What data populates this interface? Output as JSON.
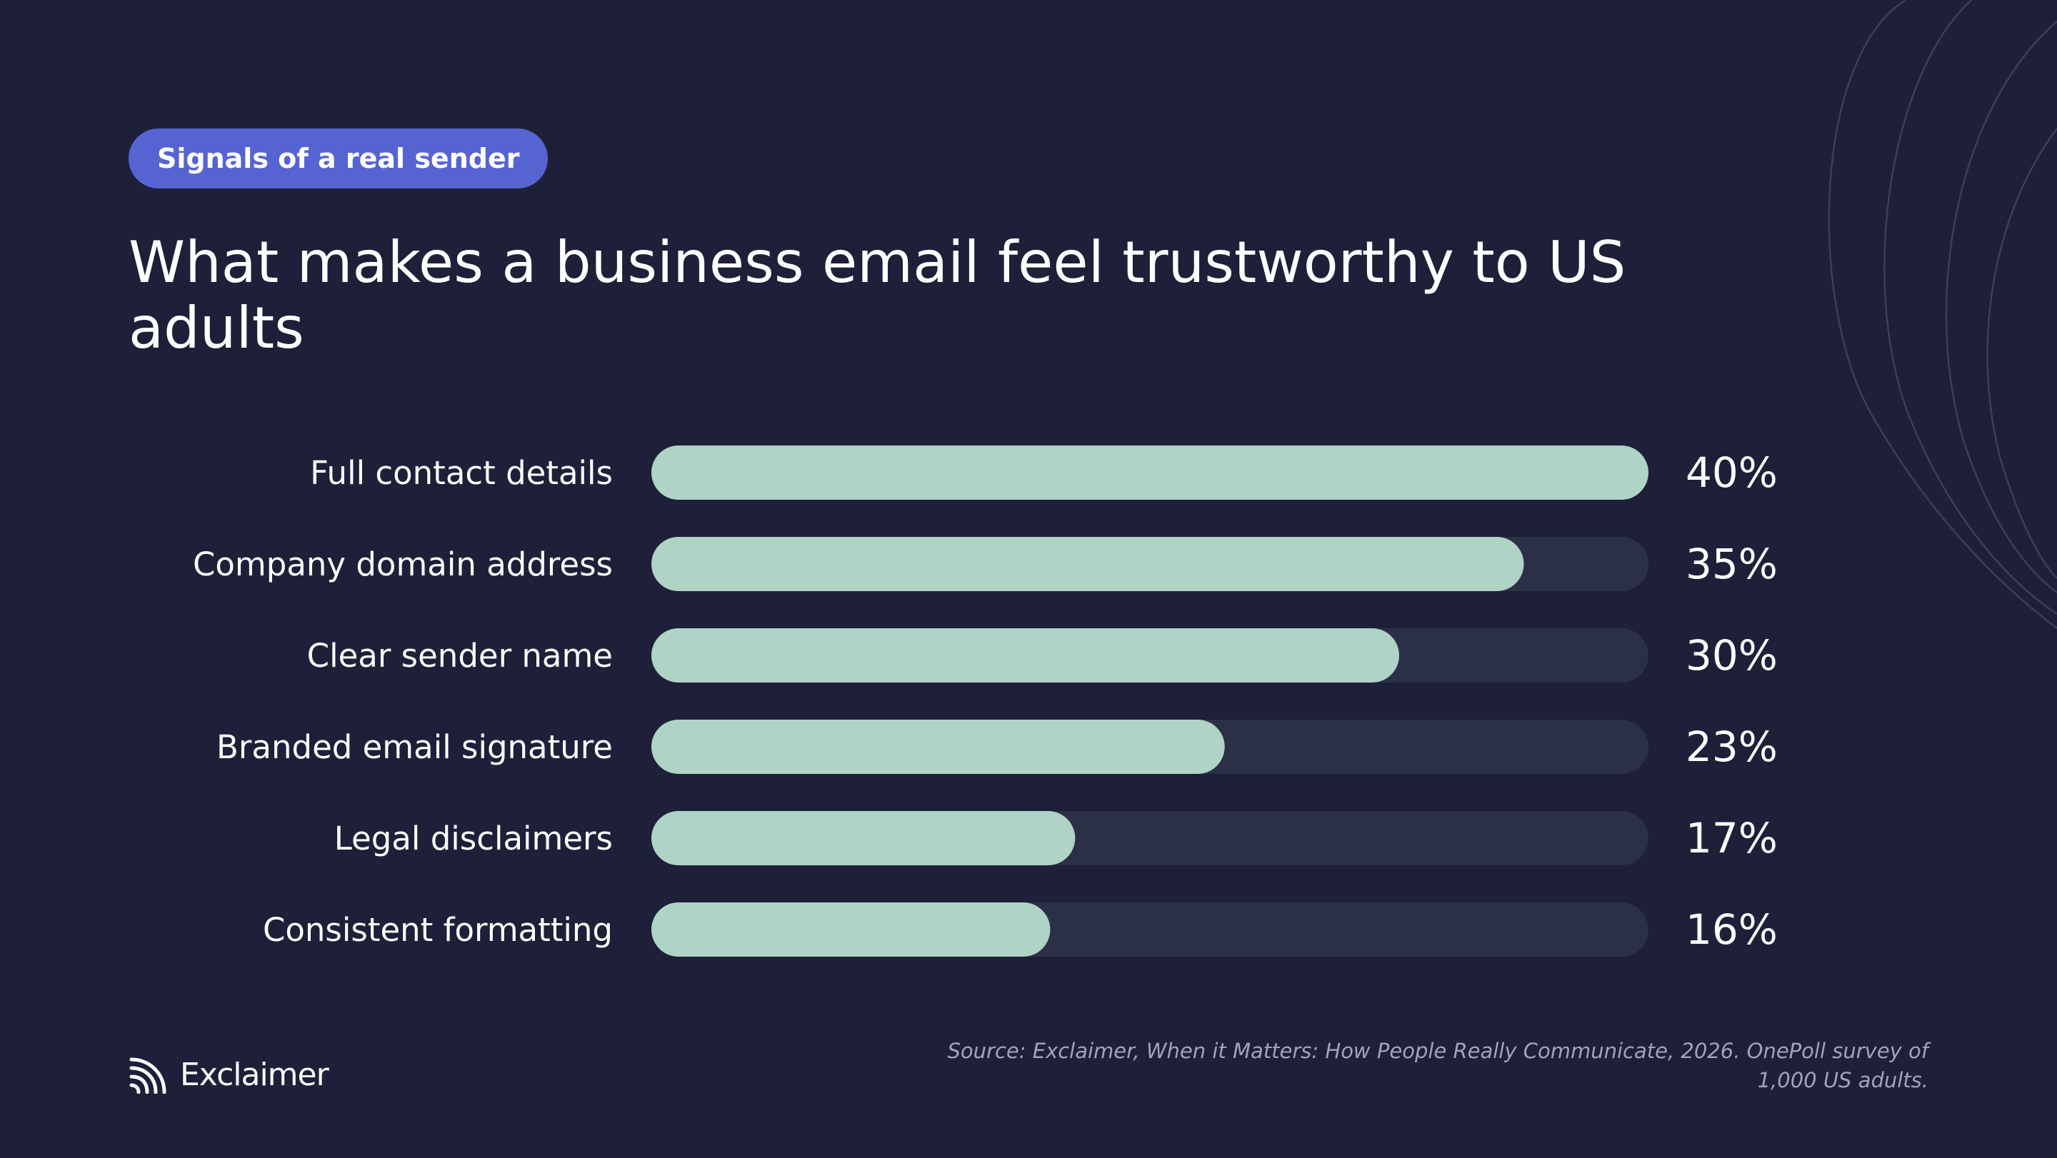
{
  "badge": "Signals of a real sender",
  "title": "What makes a business email feel trustworthy to US adults",
  "chart_data": {
    "type": "bar",
    "orientation": "horizontal",
    "categories": [
      "Full contact details",
      "Company domain address",
      "Clear sender name",
      "Branded email signature",
      "Legal disclaimers",
      "Consistent formatting"
    ],
    "values": [
      40,
      35,
      30,
      23,
      17,
      16
    ],
    "value_labels": [
      "40%",
      "35%",
      "30%",
      "23%",
      "17%",
      "16%"
    ],
    "xlim": [
      0,
      40
    ],
    "grid": false,
    "colors": {
      "bar": "#afd3c5",
      "track": "#2c3047"
    }
  },
  "source": "Source: Exclaimer, When it Matters: How People Really Communicate, 2026. OnePoll survey of 1,000 US adults.",
  "logo": {
    "text": "Exclaimer",
    "icon": "exclaimer-logo-icon"
  },
  "colors": {
    "background": "#1d2038",
    "badge": "#5664d2",
    "text": "#ffffff",
    "source_text": "#9fa3bd"
  }
}
